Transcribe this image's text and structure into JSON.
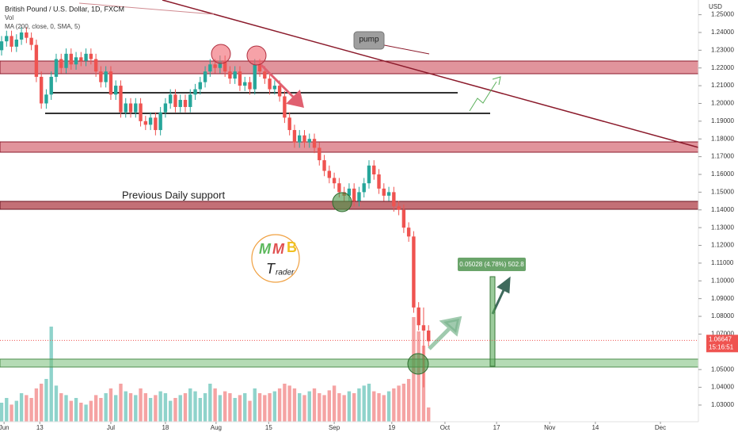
{
  "chart_data": {
    "type": "candlestick",
    "title": "British Pound / U.S. Dollar, 1D, FXCM",
    "indicators": [
      "Vol",
      "MA (200, close, 0, SMA, 5)"
    ],
    "currency": "USD",
    "annotations": {
      "pump": "pump",
      "support": "Previous Daily support",
      "measure": "0.05028 (4.78%) 502.8"
    },
    "last_price": 1.06647,
    "countdown": "15:16:51",
    "logo": {
      "m1": "M",
      "m2": "M",
      "b": "B",
      "t": "T",
      "rader": "rader"
    },
    "up_color": "#26a69a",
    "down_color": "#ef5350",
    "vol_up_color": "#8fd3cb",
    "vol_down_color": "#f5a3a3",
    "xlim": [
      -0.32,
      140.35
    ],
    "xticks": [
      {
        "value": 0.5,
        "label": "Jun"
      },
      {
        "value": 7.7,
        "label": "13"
      },
      {
        "value": 22,
        "label": "Jul"
      },
      {
        "value": 33,
        "label": "18"
      },
      {
        "value": 43.2,
        "label": "Aug"
      },
      {
        "value": 53.8,
        "label": "15"
      },
      {
        "value": 67,
        "label": "Sep"
      },
      {
        "value": 78.6,
        "label": "19"
      },
      {
        "value": 89.3,
        "label": "Oct"
      },
      {
        "value": 99.7,
        "label": "17"
      },
      {
        "value": 110.4,
        "label": "Nov"
      },
      {
        "value": 119.6,
        "label": "14"
      },
      {
        "value": 132.7,
        "label": "Dec"
      }
    ],
    "ylim": [
      1.0206,
      1.2583
    ],
    "yticks": [
      {
        "value": 1.25,
        "label": "1.25000"
      },
      {
        "value": 1.24,
        "label": "1.24000"
      },
      {
        "value": 1.23,
        "label": "1.23000"
      },
      {
        "value": 1.22,
        "label": "1.22000"
      },
      {
        "value": 1.21,
        "label": "1.21000"
      },
      {
        "value": 1.2,
        "label": "1.20000"
      },
      {
        "value": 1.19,
        "label": "1.19000"
      },
      {
        "value": 1.18,
        "label": "1.18000"
      },
      {
        "value": 1.17,
        "label": "1.17000"
      },
      {
        "value": 1.16,
        "label": "1.16000"
      },
      {
        "value": 1.15,
        "label": "1.15000"
      },
      {
        "value": 1.14,
        "label": "1.14000"
      },
      {
        "value": 1.13,
        "label": "1.13000"
      },
      {
        "value": 1.12,
        "label": "1.12000"
      },
      {
        "value": 1.11,
        "label": "1.11000"
      },
      {
        "value": 1.1,
        "label": "1.10000"
      },
      {
        "value": 1.09,
        "label": "1.09000"
      },
      {
        "value": 1.08,
        "label": "1.08000"
      },
      {
        "value": 1.07,
        "label": "1.07000"
      },
      {
        "value": 1.05,
        "label": "1.05000"
      },
      {
        "value": 1.04,
        "label": "1.04000"
      },
      {
        "value": 1.03,
        "label": "1.03000"
      }
    ],
    "vlim": [
      0,
      100
    ],
    "open": [
      1.23,
      1.235,
      1.238,
      1.232,
      1.236,
      1.24,
      1.237,
      1.233,
      1.215,
      1.2,
      1.205,
      1.215,
      1.225,
      1.22,
      1.228,
      1.222,
      1.226,
      1.224,
      1.228,
      1.225,
      1.218,
      1.212,
      1.218,
      1.205,
      1.21,
      1.195,
      1.2,
      1.195,
      1.2,
      1.19,
      1.188,
      1.192,
      1.185,
      1.195,
      1.2,
      1.205,
      1.198,
      1.202,
      1.198,
      1.205,
      1.208,
      1.212,
      1.218,
      1.222,
      1.22,
      1.224,
      1.218,
      1.214,
      1.218,
      1.21,
      1.212,
      1.208,
      1.222,
      1.218,
      1.214,
      1.208,
      1.21,
      1.204,
      1.192,
      1.185,
      1.178,
      1.182,
      1.178,
      1.18,
      1.175,
      1.168,
      1.162,
      1.158,
      1.155,
      1.15,
      1.148,
      1.152,
      1.145,
      1.15,
      1.155,
      1.165,
      1.16,
      1.152,
      1.148,
      1.15,
      1.142,
      1.14,
      1.13,
      1.125,
      1.085,
      1.075,
      1.072
    ],
    "high": [
      1.238,
      1.241,
      1.241,
      1.239,
      1.243,
      1.243,
      1.24,
      1.236,
      1.218,
      1.208,
      1.218,
      1.228,
      1.228,
      1.231,
      1.231,
      1.229,
      1.229,
      1.231,
      1.231,
      1.228,
      1.221,
      1.221,
      1.221,
      1.213,
      1.213,
      1.203,
      1.203,
      1.203,
      1.203,
      1.193,
      1.195,
      1.195,
      1.198,
      1.203,
      1.208,
      1.208,
      1.205,
      1.205,
      1.208,
      1.211,
      1.215,
      1.221,
      1.225,
      1.225,
      1.227,
      1.227,
      1.221,
      1.221,
      1.221,
      1.215,
      1.215,
      1.225,
      1.225,
      1.221,
      1.217,
      1.213,
      1.213,
      1.207,
      1.195,
      1.188,
      1.185,
      1.185,
      1.183,
      1.183,
      1.178,
      1.171,
      1.165,
      1.161,
      1.158,
      1.153,
      1.155,
      1.155,
      1.153,
      1.158,
      1.168,
      1.168,
      1.163,
      1.155,
      1.153,
      1.153,
      1.145,
      1.143,
      1.133,
      1.128,
      1.088,
      1.085,
      1.075
    ],
    "low": [
      1.227,
      1.232,
      1.229,
      1.229,
      1.233,
      1.234,
      1.23,
      1.212,
      1.197,
      1.197,
      1.202,
      1.212,
      1.217,
      1.217,
      1.219,
      1.219,
      1.221,
      1.221,
      1.222,
      1.215,
      1.209,
      1.209,
      1.202,
      1.202,
      1.192,
      1.192,
      1.192,
      1.192,
      1.187,
      1.185,
      1.185,
      1.182,
      1.182,
      1.192,
      1.197,
      1.195,
      1.195,
      1.195,
      1.195,
      1.202,
      1.205,
      1.209,
      1.215,
      1.217,
      1.217,
      1.215,
      1.211,
      1.211,
      1.207,
      1.207,
      1.205,
      1.205,
      1.215,
      1.211,
      1.205,
      1.205,
      1.201,
      1.189,
      1.182,
      1.175,
      1.175,
      1.175,
      1.175,
      1.172,
      1.165,
      1.159,
      1.155,
      1.152,
      1.147,
      1.145,
      1.145,
      1.142,
      1.142,
      1.147,
      1.152,
      1.157,
      1.149,
      1.145,
      1.145,
      1.139,
      1.137,
      1.127,
      1.122,
      1.082,
      1.072,
      1.04,
      1.063
    ],
    "close": [
      1.235,
      1.238,
      1.232,
      1.236,
      1.24,
      1.237,
      1.233,
      1.215,
      1.2,
      1.205,
      1.215,
      1.225,
      1.22,
      1.228,
      1.222,
      1.226,
      1.224,
      1.228,
      1.225,
      1.218,
      1.212,
      1.218,
      1.205,
      1.21,
      1.195,
      1.2,
      1.195,
      1.2,
      1.19,
      1.188,
      1.192,
      1.185,
      1.195,
      1.2,
      1.205,
      1.198,
      1.202,
      1.198,
      1.205,
      1.208,
      1.212,
      1.218,
      1.222,
      1.22,
      1.224,
      1.218,
      1.214,
      1.218,
      1.21,
      1.212,
      1.208,
      1.222,
      1.218,
      1.214,
      1.208,
      1.21,
      1.204,
      1.192,
      1.185,
      1.178,
      1.182,
      1.178,
      1.18,
      1.175,
      1.168,
      1.162,
      1.158,
      1.155,
      1.15,
      1.148,
      1.152,
      1.145,
      1.15,
      1.155,
      1.165,
      1.16,
      1.152,
      1.148,
      1.15,
      1.142,
      1.14,
      1.13,
      1.125,
      1.085,
      1.075,
      1.072,
      1.066
    ],
    "volume": [
      20,
      25,
      18,
      22,
      30,
      28,
      25,
      35,
      40,
      45,
      100,
      38,
      30,
      28,
      22,
      25,
      20,
      18,
      22,
      28,
      25,
      30,
      35,
      28,
      40,
      32,
      30,
      28,
      35,
      30,
      25,
      28,
      32,
      30,
      22,
      25,
      28,
      30,
      35,
      32,
      25,
      30,
      40,
      35,
      28,
      32,
      30,
      25,
      28,
      30,
      22,
      35,
      30,
      28,
      30,
      32,
      35,
      40,
      38,
      35,
      30,
      28,
      32,
      35,
      30,
      28,
      33,
      38,
      30,
      28,
      32,
      30,
      35,
      38,
      40,
      32,
      30,
      28,
      32,
      35,
      38,
      40,
      45,
      110,
      95,
      80,
      15
    ]
  }
}
